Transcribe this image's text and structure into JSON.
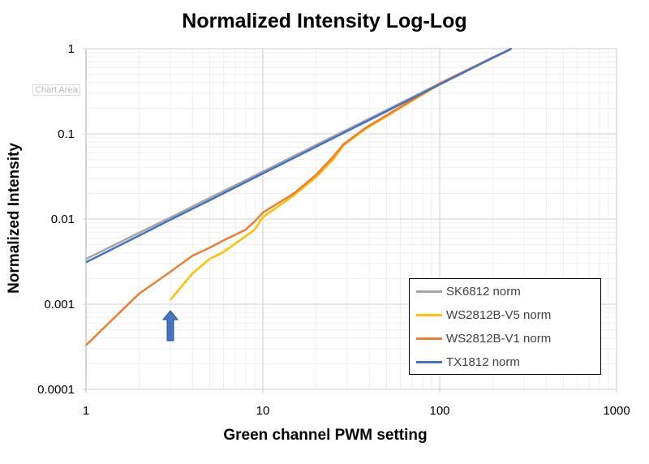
{
  "tooltip": "Chart Area",
  "chart_data": {
    "type": "line",
    "title": "Normalized Intensity Log-Log",
    "xlabel": "Green channel PWM setting",
    "ylabel": "Normalized Intensity",
    "xscale": "log",
    "yscale": "log",
    "xlim": [
      1,
      1000
    ],
    "ylim": [
      0.0001,
      1
    ],
    "xticks": [
      "1",
      "10",
      "100",
      "1000"
    ],
    "yticks": [
      "1",
      "0.1",
      "0.01",
      "0.001",
      "0.0001"
    ],
    "grid": true,
    "legend_position": "bottom-right",
    "annotation": "blue up arrow pointing at x=3",
    "series": [
      {
        "name": "SK6812 norm",
        "color": "#a5a5a5",
        "x": [
          1,
          2,
          3,
          5,
          10,
          20,
          50,
          100,
          200,
          255
        ],
        "y": [
          0.0034,
          0.0069,
          0.0104,
          0.0177,
          0.036,
          0.074,
          0.19,
          0.39,
          0.79,
          1.0
        ]
      },
      {
        "name": "WS2812B-V5 norm",
        "color": "#ffc000",
        "x": [
          3,
          4,
          5,
          6,
          9,
          10,
          15,
          20,
          25,
          28.5,
          38,
          50,
          70,
          100,
          150,
          200,
          255
        ],
        "y": [
          0.00112,
          0.0023,
          0.0034,
          0.0041,
          0.0075,
          0.0105,
          0.019,
          0.031,
          0.05,
          0.073,
          0.114,
          0.16,
          0.245,
          0.38,
          0.58,
          0.78,
          1.0
        ]
      },
      {
        "name": "WS2812B-V1 norm",
        "color": "#ed7d31",
        "x": [
          1,
          2,
          3,
          4,
          5,
          6,
          8,
          9,
          10,
          15,
          20,
          25,
          28.5,
          38,
          50,
          70,
          100,
          150,
          200,
          255
        ],
        "y": [
          0.00033,
          0.00133,
          0.0024,
          0.0037,
          0.0046,
          0.0056,
          0.0075,
          0.0094,
          0.0119,
          0.02,
          0.033,
          0.054,
          0.075,
          0.117,
          0.165,
          0.25,
          0.39,
          0.59,
          0.79,
          1.0
        ]
      },
      {
        "name": "TX1812 norm",
        "color": "#4472c4",
        "x": [
          1,
          2,
          3,
          5,
          10,
          20,
          50,
          100,
          200,
          255
        ],
        "y": [
          0.0031,
          0.0064,
          0.0098,
          0.0166,
          0.0342,
          0.0705,
          0.184,
          0.38,
          0.78,
          1.0
        ]
      }
    ]
  }
}
